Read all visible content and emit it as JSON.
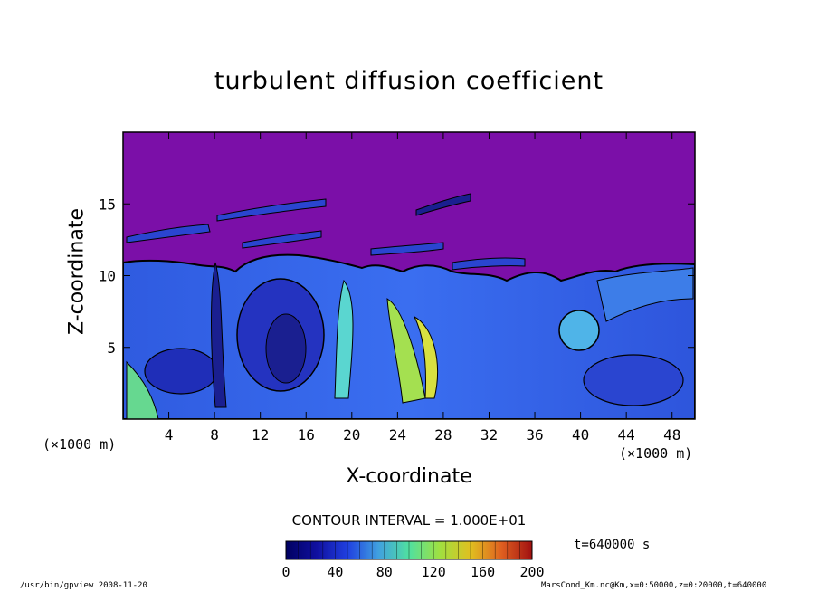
{
  "chart_data": {
    "type": "heatmap",
    "title": "turbulent diffusion coefficient",
    "xlabel": "X-coordinate",
    "ylabel": "Z-coordinate",
    "x_unit": "(×1000 m)",
    "y_unit": "(×1000 m)",
    "xlim": [
      0,
      50
    ],
    "ylim": [
      0,
      20
    ],
    "x_ticks": [
      4,
      8,
      12,
      16,
      20,
      24,
      28,
      32,
      36,
      40,
      44,
      48
    ],
    "y_ticks": [
      5,
      10,
      15
    ],
    "contour_interval_label": "CONTOUR INTERVAL = 1.000E+01",
    "colorbar": {
      "range": [
        0,
        200
      ],
      "ticks": [
        0,
        40,
        80,
        120,
        160,
        200
      ],
      "colors": [
        "#000060",
        "#1010a0",
        "#2040e0",
        "#40a0e0",
        "#50e0a0",
        "#a0e040",
        "#e0c020",
        "#e06020",
        "#a01010"
      ]
    },
    "field_upper_value": 0,
    "field_upper_color": "#7b0fa8",
    "time_label": "t=640000 s"
  },
  "footer": {
    "left": "/usr/bin/gpview  2008-11-20",
    "right": "MarsCond_Km.nc@Km,x=0:50000,z=0:20000,t=640000"
  }
}
